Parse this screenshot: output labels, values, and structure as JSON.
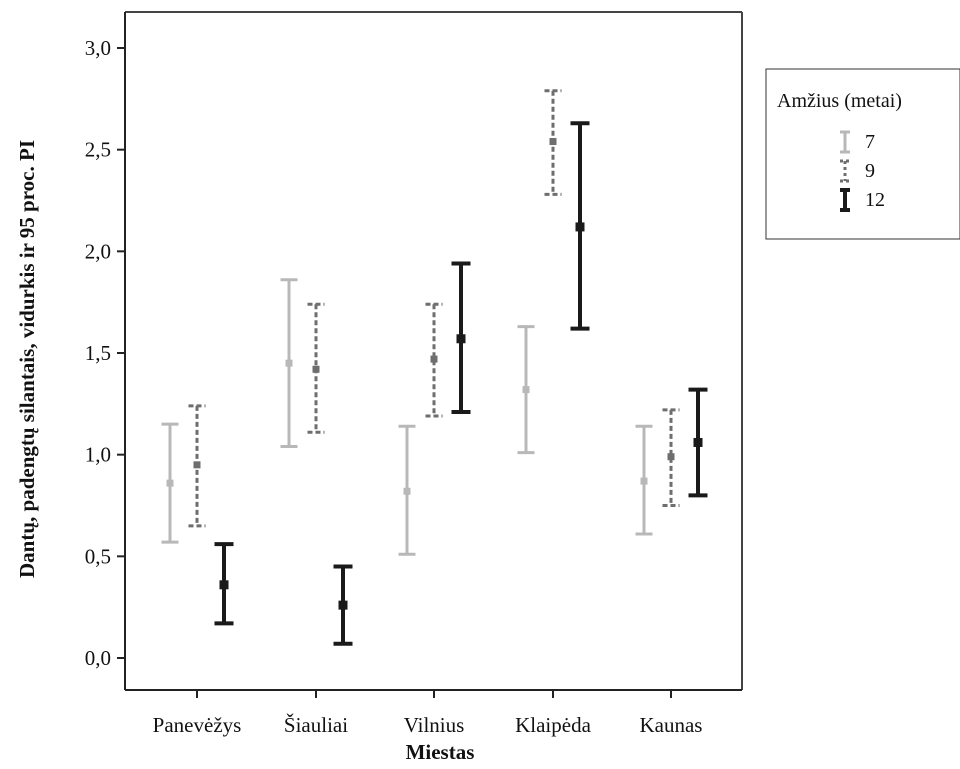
{
  "chart_data": {
    "type": "errorbar",
    "title": "",
    "xlabel": "Miestas",
    "ylabel": "Dantų, padengtų silantais, vidurkis ir 95 proc. PI",
    "categories": [
      "Panevėžys",
      "Šiauliai",
      "Vilnius",
      "Klaipėda",
      "Kaunas"
    ],
    "ylim": [
      0.0,
      3.0
    ],
    "yticks": [
      "0,0",
      "0,5",
      "1,0",
      "1,5",
      "2,0",
      "2,5",
      "3,0"
    ],
    "ytick_values": [
      0.0,
      0.5,
      1.0,
      1.5,
      2.0,
      2.5,
      3.0
    ],
    "legend": {
      "title": "Amžius (metai)",
      "position": "right"
    },
    "series": [
      {
        "name": "7",
        "color": "#b8b8b8",
        "style": "solid",
        "mean": [
          0.86,
          1.45,
          0.82,
          1.32,
          0.87
        ],
        "lower": [
          0.57,
          1.04,
          0.51,
          1.01,
          0.61
        ],
        "upper": [
          1.15,
          1.86,
          1.14,
          1.63,
          1.14
        ]
      },
      {
        "name": "9",
        "color": "#6e6e6e",
        "style": "dashed",
        "mean": [
          0.95,
          1.42,
          1.47,
          2.54,
          0.99
        ],
        "lower": [
          0.65,
          1.11,
          1.19,
          2.28,
          0.75
        ],
        "upper": [
          1.24,
          1.74,
          1.74,
          2.79,
          1.22
        ]
      },
      {
        "name": "12",
        "color": "#1a1a1a",
        "style": "solid-bold",
        "mean": [
          0.36,
          0.26,
          1.57,
          2.12,
          1.06
        ],
        "lower": [
          0.17,
          0.07,
          1.21,
          1.62,
          0.8
        ],
        "upper": [
          0.56,
          0.45,
          1.94,
          2.63,
          1.32
        ]
      }
    ]
  }
}
